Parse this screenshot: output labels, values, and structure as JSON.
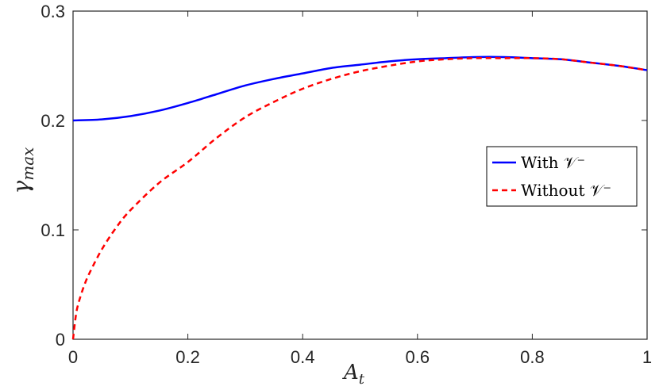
{
  "chart_data": {
    "type": "line",
    "xlabel": {
      "base": "A",
      "sub": "t"
    },
    "ylabel": {
      "base": "γ",
      "sub": "max"
    },
    "xlim": [
      0,
      1
    ],
    "ylim": [
      0,
      0.3
    ],
    "xticks": [
      "0",
      "0.2",
      "0.4",
      "0.6",
      "0.8",
      "1"
    ],
    "yticks": [
      "0",
      "0.1",
      "0.2",
      "0.3"
    ],
    "legend_position": "right",
    "series": [
      {
        "name": "With 𝒱⁻",
        "color": "#0000ff",
        "style": "solid",
        "x": [
          0,
          0.05,
          0.1,
          0.15,
          0.2,
          0.25,
          0.3,
          0.35,
          0.4,
          0.45,
          0.5,
          0.55,
          0.6,
          0.65,
          0.7,
          0.75,
          0.8,
          0.85,
          0.9,
          0.95,
          1.0
        ],
        "y": [
          0.2,
          0.201,
          0.204,
          0.209,
          0.216,
          0.224,
          0.232,
          0.238,
          0.243,
          0.248,
          0.251,
          0.254,
          0.256,
          0.257,
          0.258,
          0.258,
          0.257,
          0.256,
          0.253,
          0.25,
          0.246
        ]
      },
      {
        "name": "Without 𝒱⁻",
        "color": "#ff0000",
        "style": "dashed",
        "x": [
          0,
          0.005,
          0.01,
          0.02,
          0.03,
          0.05,
          0.075,
          0.1,
          0.15,
          0.2,
          0.25,
          0.3,
          0.35,
          0.4,
          0.45,
          0.5,
          0.55,
          0.6,
          0.65,
          0.7,
          0.75,
          0.8,
          0.85,
          0.9,
          0.95,
          1.0
        ],
        "y": [
          0.0,
          0.022,
          0.034,
          0.05,
          0.062,
          0.082,
          0.102,
          0.118,
          0.143,
          0.162,
          0.184,
          0.203,
          0.217,
          0.229,
          0.238,
          0.245,
          0.25,
          0.254,
          0.256,
          0.257,
          0.257,
          0.257,
          0.256,
          0.253,
          0.25,
          0.246
        ]
      }
    ]
  }
}
